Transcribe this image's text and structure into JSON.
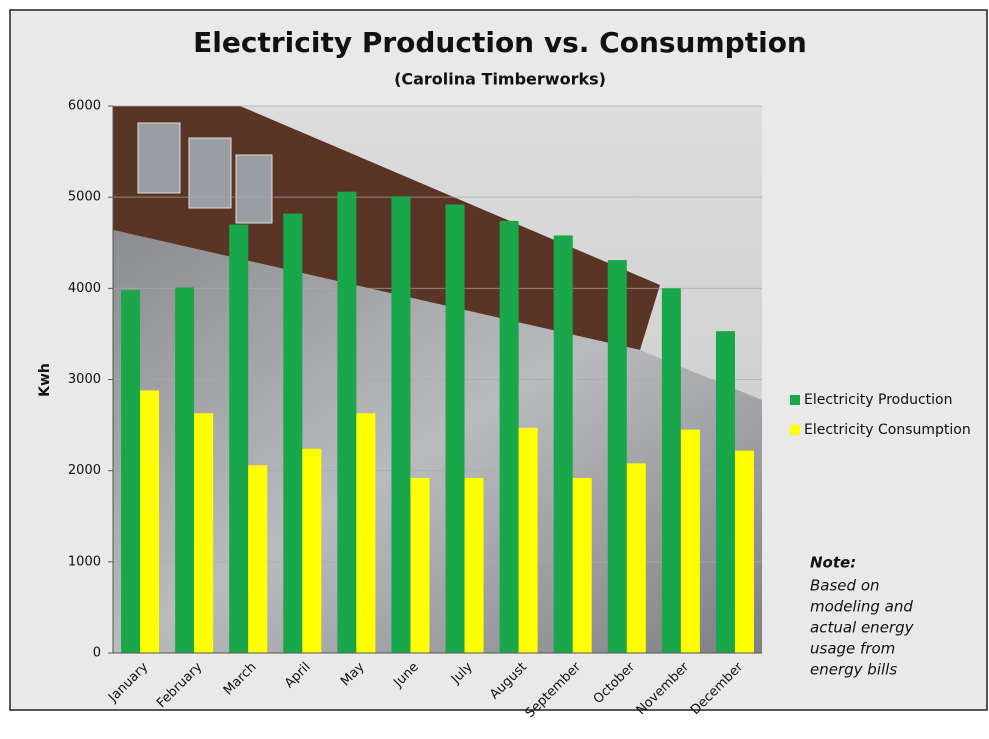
{
  "chart_data": {
    "type": "bar",
    "title": "Electricity Production vs. Consumption",
    "subtitle": "(Carolina Timberworks)",
    "y_label": "Kwh",
    "categories": [
      "January",
      "February",
      "March",
      "April",
      "May",
      "June",
      "July",
      "August",
      "September",
      "October",
      "November",
      "December"
    ],
    "series": [
      {
        "name": "Electricity Production",
        "color": "#1aa64a",
        "values": [
          3980,
          4010,
          4700,
          4820,
          5060,
          5010,
          4920,
          4740,
          4580,
          4310,
          4000,
          3530
        ]
      },
      {
        "name": "Electricity Consumption",
        "color": "#ffff00",
        "values": [
          2880,
          2630,
          2060,
          2240,
          2630,
          1920,
          1920,
          2470,
          1920,
          2080,
          2450,
          2220
        ]
      }
    ],
    "ylim": [
      0,
      6000
    ],
    "yticks": [
      0,
      1000,
      2000,
      3000,
      4000,
      5000,
      6000
    ],
    "grid": true,
    "legend": "right",
    "annotation": {
      "title": "Note:",
      "lines": [
        "Based on",
        "modeling and",
        "actual energy",
        "usage from",
        "energy bills"
      ]
    }
  }
}
